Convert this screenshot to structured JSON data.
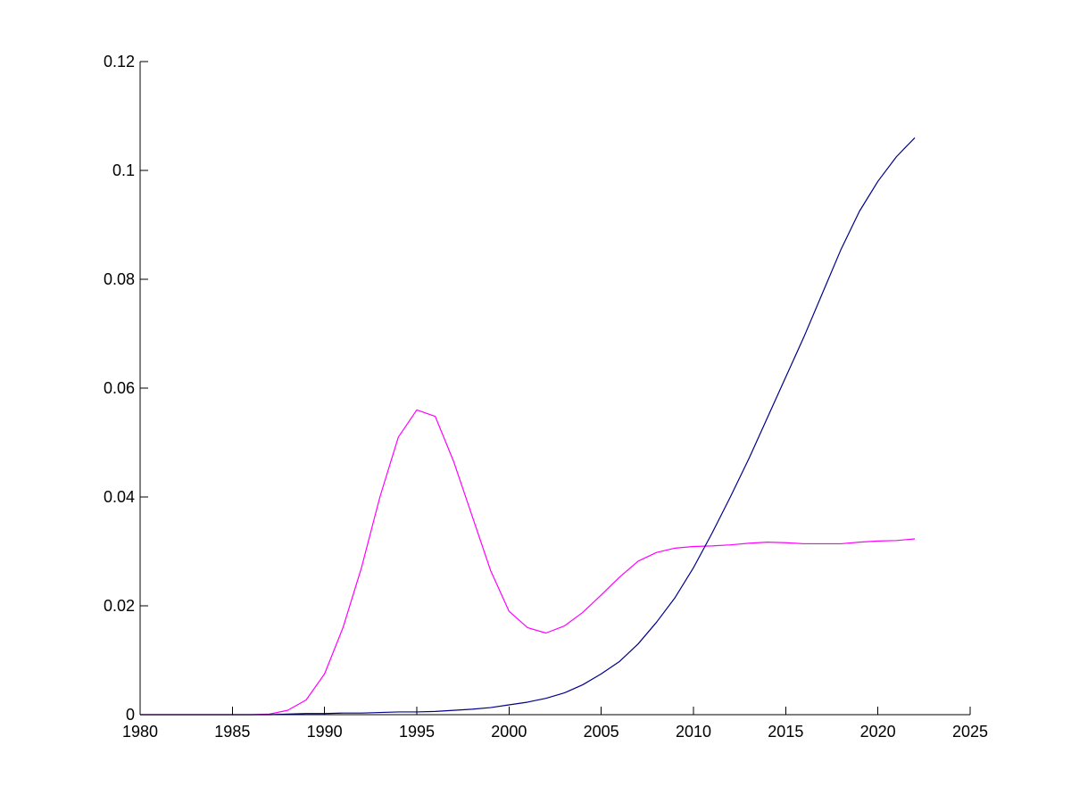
{
  "chart_data": {
    "type": "line",
    "title": "",
    "xlabel": "",
    "ylabel": "",
    "xlim": [
      1980,
      2025
    ],
    "ylim": [
      0,
      0.12
    ],
    "x_ticks": [
      1980,
      1985,
      1990,
      1995,
      2000,
      2005,
      2010,
      2015,
      2020,
      2025
    ],
    "x_tick_labels": [
      "1980",
      "1985",
      "1990",
      "1995",
      "2000",
      "2005",
      "2010",
      "2015",
      "2020",
      "2025"
    ],
    "y_ticks": [
      0,
      0.02,
      0.04,
      0.06,
      0.08,
      0.1,
      0.12
    ],
    "y_tick_labels": [
      "0",
      "0.02",
      "0.04",
      "0.06",
      "0.08",
      "0.1",
      "0.12"
    ],
    "grid": false,
    "legend": "none",
    "x": [
      1980,
      1981,
      1982,
      1983,
      1984,
      1985,
      1986,
      1987,
      1988,
      1989,
      1990,
      1991,
      1992,
      1993,
      1994,
      1995,
      1996,
      1997,
      1998,
      1999,
      2000,
      2001,
      2002,
      2003,
      2004,
      2005,
      2006,
      2007,
      2008,
      2009,
      2010,
      2011,
      2012,
      2013,
      2014,
      2015,
      2016,
      2017,
      2018,
      2019,
      2020,
      2021,
      2022
    ],
    "series": [
      {
        "color": "#ff00ff",
        "values": [
          0,
          0,
          0,
          0,
          0,
          0,
          0,
          0.0001,
          0.0008,
          0.0027,
          0.0075,
          0.016,
          0.027,
          0.04,
          0.051,
          0.056,
          0.0548,
          0.0465,
          0.0365,
          0.0265,
          0.019,
          0.016,
          0.015,
          0.0163,
          0.0188,
          0.022,
          0.0253,
          0.0282,
          0.0298,
          0.0306,
          0.0309,
          0.031,
          0.0312,
          0.0315,
          0.0317,
          0.0316,
          0.0314,
          0.0314,
          0.0314,
          0.0317,
          0.0319,
          0.032,
          0.0323
        ]
      },
      {
        "color": "#00008b",
        "values": [
          0,
          0,
          0,
          0,
          0,
          0,
          0,
          0,
          0.0001,
          0.0002,
          0.0002,
          0.0003,
          0.0003,
          0.0004,
          0.0005,
          0.0005,
          0.0006,
          0.0008,
          0.001,
          0.0013,
          0.0018,
          0.0023,
          0.003,
          0.004,
          0.0055,
          0.0075,
          0.0098,
          0.013,
          0.017,
          0.0215,
          0.027,
          0.0333,
          0.04,
          0.047,
          0.0545,
          0.062,
          0.0695,
          0.0775,
          0.0855,
          0.0925,
          0.098,
          0.1025,
          0.106
        ]
      }
    ]
  }
}
